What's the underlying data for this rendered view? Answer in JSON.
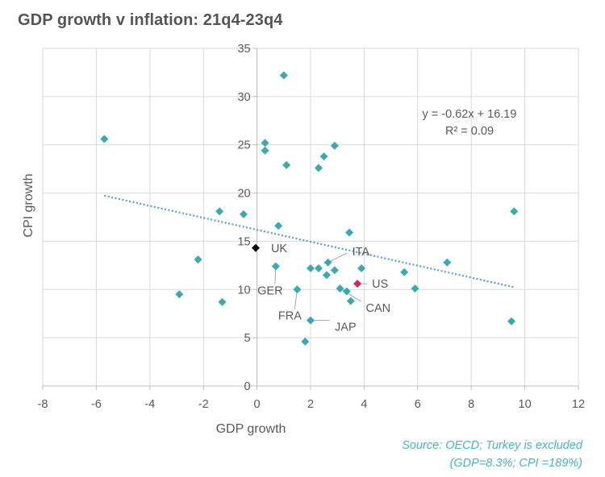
{
  "chart_data": {
    "type": "scatter",
    "title": "GDP growth v inflation: 21q4-23q4",
    "xlabel": "GDP growth",
    "ylabel": "CPI growth",
    "xlim": [
      -8,
      12
    ],
    "ylim": [
      0,
      35
    ],
    "xticks": [
      -8,
      -6,
      -4,
      -2,
      0,
      2,
      4,
      6,
      8,
      10,
      12
    ],
    "yticks": [
      0,
      5,
      10,
      15,
      20,
      25,
      30,
      35
    ],
    "grid": true,
    "colors": {
      "default": "#3aa9b0",
      "uk": "#000000",
      "us": "#d0255f",
      "trend": "#5b9bd5",
      "grid": "#d9d9d9",
      "axis": "#bfbfbf",
      "label": "#595959"
    },
    "points": [
      {
        "x": -5.7,
        "y": 25.6
      },
      {
        "x": -2.9,
        "y": 9.5
      },
      {
        "x": -2.2,
        "y": 13.1
      },
      {
        "x": -1.4,
        "y": 18.1
      },
      {
        "x": -1.3,
        "y": 8.7
      },
      {
        "x": -0.5,
        "y": 17.8
      },
      {
        "x": 0.3,
        "y": 25.2
      },
      {
        "x": 0.3,
        "y": 24.4
      },
      {
        "x": 0.7,
        "y": 12.4
      },
      {
        "x": 0.8,
        "y": 16.6
      },
      {
        "x": 1.0,
        "y": 32.2
      },
      {
        "x": 1.1,
        "y": 22.9
      },
      {
        "x": 1.5,
        "y": 10.0
      },
      {
        "x": 1.8,
        "y": 4.6
      },
      {
        "x": 2.0,
        "y": 12.2
      },
      {
        "x": 2.0,
        "y": 6.8
      },
      {
        "x": 2.3,
        "y": 22.6
      },
      {
        "x": 2.3,
        "y": 12.2
      },
      {
        "x": 2.5,
        "y": 23.8
      },
      {
        "x": 2.6,
        "y": 11.5
      },
      {
        "x": 2.65,
        "y": 12.8
      },
      {
        "x": 2.9,
        "y": 24.9
      },
      {
        "x": 2.9,
        "y": 12.0
      },
      {
        "x": 3.1,
        "y": 10.1
      },
      {
        "x": 3.35,
        "y": 9.8
      },
      {
        "x": 3.45,
        "y": 15.9
      },
      {
        "x": 3.5,
        "y": 8.8
      },
      {
        "x": 3.9,
        "y": 12.2
      },
      {
        "x": 5.5,
        "y": 11.8
      },
      {
        "x": 5.9,
        "y": 10.1
      },
      {
        "x": 7.1,
        "y": 12.8
      },
      {
        "x": 9.5,
        "y": 6.7
      },
      {
        "x": 9.6,
        "y": 18.1
      },
      {
        "x": -0.05,
        "y": 14.3,
        "highlight": "uk"
      },
      {
        "x": 3.75,
        "y": 10.6,
        "highlight": "us"
      }
    ],
    "country_labels": [
      {
        "text": "UK",
        "x": -0.05,
        "y": 14.3,
        "dx": 19,
        "dy": 0,
        "leader": false
      },
      {
        "text": "ITA",
        "x": 2.65,
        "y": 12.8,
        "dx": 30,
        "dy": -14,
        "leader": true
      },
      {
        "text": "US",
        "x": 3.75,
        "y": 10.6,
        "dx": 18,
        "dy": 0,
        "leader": true
      },
      {
        "text": "GER",
        "x": 0.7,
        "y": 12.4,
        "dx": -7,
        "dy": 30,
        "leader": true
      },
      {
        "text": "FRA",
        "x": 1.5,
        "y": 10.0,
        "dx": -9,
        "dy": 32,
        "leader": true
      },
      {
        "text": "CAN",
        "x": 3.1,
        "y": 10.1,
        "dx": 32,
        "dy": 24,
        "leader": true
      },
      {
        "text": "JAP",
        "x": 2.0,
        "y": 6.8,
        "dx": 30,
        "dy": 8,
        "leader": true
      }
    ],
    "trendline": {
      "slope": -0.62,
      "intercept": 16.19,
      "x_start": -5.7,
      "x_end": 9.6
    },
    "equation": "y = -0.62x + 16.19",
    "r_squared": "R² = 0.09",
    "source_line1": "Source: OECD; Turkey is excluded",
    "source_line2": "(GDP=8.3%; CPI =189%)"
  }
}
